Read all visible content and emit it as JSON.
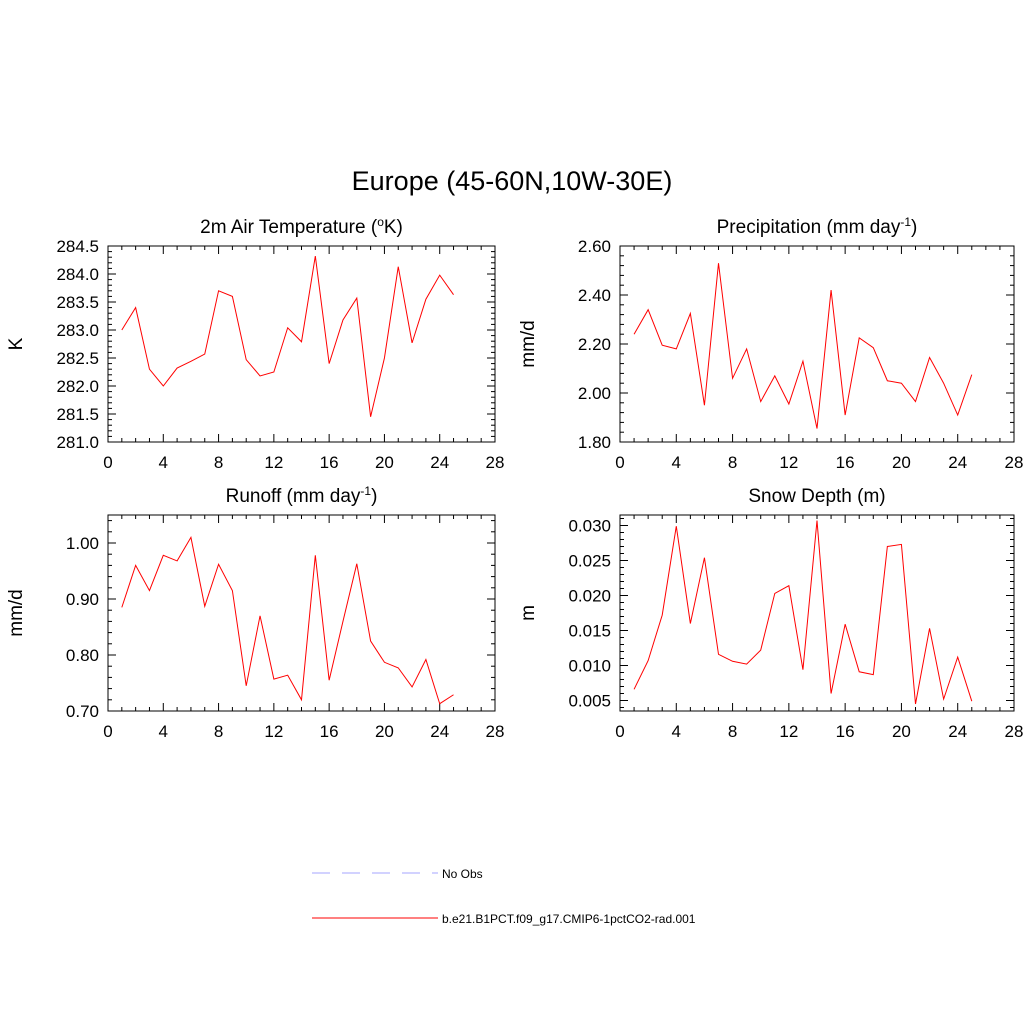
{
  "figure_title": "Europe (45-60N,10W-30E)",
  "legend": {
    "placement": "bottom-center",
    "entries": [
      {
        "label": "No Obs",
        "color": "#a6a6ff",
        "dash": true
      },
      {
        "label": "b.e21.B1PCT.f09_g17.CMIP6-1pctCO2-rad.001",
        "color": "#ff0000",
        "dash": false
      }
    ]
  },
  "chart_data": [
    {
      "type": "line",
      "title": "2m Air Temperature (",
      "title_sup": "o",
      "title_after": "K)",
      "ylabel": "K",
      "xlim": [
        0,
        28
      ],
      "ylim": [
        281.0,
        284.5
      ],
      "xticks": [
        0,
        4,
        8,
        12,
        16,
        20,
        24,
        28
      ],
      "yticks": [
        "281.0",
        "281.5",
        "282.0",
        "282.5",
        "283.0",
        "283.5",
        "284.0",
        "284.5"
      ],
      "grid": false,
      "series": [
        {
          "color": "#ff0000",
          "x": [
            1,
            2,
            3,
            4,
            5,
            6,
            7,
            8,
            9,
            10,
            11,
            12,
            13,
            14,
            15,
            16,
            17,
            18,
            19,
            20,
            21,
            22,
            23,
            24,
            25
          ],
          "values": [
            283.0,
            283.4,
            282.3,
            282.0,
            282.32,
            282.44,
            282.57,
            283.7,
            283.6,
            282.47,
            282.18,
            282.25,
            283.04,
            282.79,
            284.32,
            282.4,
            283.18,
            283.57,
            281.45,
            282.5,
            284.13,
            282.77,
            283.55,
            283.98,
            283.63
          ]
        }
      ]
    },
    {
      "type": "line",
      "title": "Precipitation (mm day",
      "title_sup": "-1",
      "title_after": ")",
      "ylabel": "mm/d",
      "xlim": [
        0,
        28
      ],
      "ylim": [
        1.8,
        2.6
      ],
      "xticks": [
        0,
        4,
        8,
        12,
        16,
        20,
        24,
        28
      ],
      "yticks": [
        "1.80",
        "2.00",
        "2.20",
        "2.40",
        "2.60"
      ],
      "grid": false,
      "series": [
        {
          "color": "#ff0000",
          "x": [
            1,
            2,
            3,
            4,
            5,
            6,
            7,
            8,
            9,
            10,
            11,
            12,
            13,
            14,
            15,
            16,
            17,
            18,
            19,
            20,
            21,
            22,
            23,
            24,
            25
          ],
          "values": [
            2.24,
            2.34,
            2.195,
            2.18,
            2.325,
            1.95,
            2.53,
            2.06,
            2.18,
            1.965,
            2.07,
            1.955,
            2.13,
            1.855,
            2.42,
            1.91,
            2.225,
            2.185,
            2.05,
            2.04,
            1.965,
            2.145,
            2.04,
            1.91,
            2.075
          ]
        }
      ]
    },
    {
      "type": "line",
      "title": "Runoff (mm day",
      "title_sup": "-1",
      "title_after": ")",
      "ylabel": "mm/d",
      "xlim": [
        0,
        28
      ],
      "ylim": [
        0.7,
        1.05
      ],
      "xticks": [
        0,
        4,
        8,
        12,
        16,
        20,
        24,
        28
      ],
      "yticks": [
        "0.70",
        "0.80",
        "0.90",
        "1.00"
      ],
      "grid": false,
      "series": [
        {
          "color": "#ff0000",
          "x": [
            1,
            2,
            3,
            4,
            5,
            6,
            7,
            8,
            9,
            10,
            11,
            12,
            13,
            14,
            15,
            16,
            17,
            18,
            19,
            20,
            21,
            22,
            23,
            24,
            25
          ],
          "values": [
            0.885,
            0.96,
            0.915,
            0.978,
            0.968,
            1.01,
            0.887,
            0.962,
            0.915,
            0.745,
            0.87,
            0.757,
            0.764,
            0.72,
            0.978,
            0.755,
            0.86,
            0.963,
            0.825,
            0.787,
            0.777,
            0.743,
            0.792,
            0.713,
            0.729
          ]
        }
      ]
    },
    {
      "type": "line",
      "title": "Snow Depth (m)",
      "title_sup": "",
      "title_after": "",
      "ylabel": "m",
      "xlim": [
        0,
        28
      ],
      "ylim": [
        0.0035,
        0.0315
      ],
      "xticks": [
        0,
        4,
        8,
        12,
        16,
        20,
        24,
        28
      ],
      "yticks": [
        "0.005",
        "0.010",
        "0.015",
        "0.020",
        "0.025",
        "0.030"
      ],
      "grid": false,
      "series": [
        {
          "color": "#ff0000",
          "x": [
            1,
            2,
            3,
            4,
            5,
            6,
            7,
            8,
            9,
            10,
            11,
            12,
            13,
            14,
            15,
            16,
            17,
            18,
            19,
            20,
            21,
            22,
            23,
            24,
            25
          ],
          "values": [
            0.0066,
            0.0107,
            0.0172,
            0.0299,
            0.016,
            0.0254,
            0.0116,
            0.0106,
            0.0102,
            0.0122,
            0.0203,
            0.0214,
            0.0094,
            0.0307,
            0.006,
            0.0159,
            0.0091,
            0.0087,
            0.027,
            0.0273,
            0.0045,
            0.0153,
            0.0052,
            0.0112,
            0.0049
          ]
        }
      ]
    }
  ]
}
